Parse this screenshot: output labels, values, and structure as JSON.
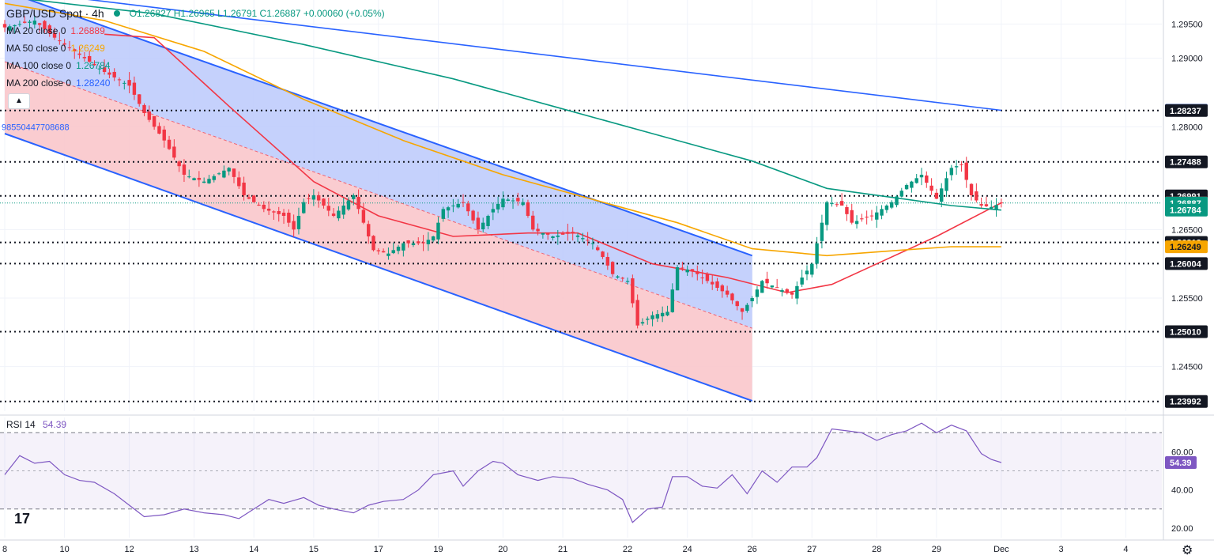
{
  "header": {
    "symbol": "GBP/USD Spot · 4h",
    "ohlc": "O1.26827 H1.26965 L1.26791 C1.26887 +0.00060 (+0.05%)"
  },
  "indicators": [
    {
      "label": "MA 20 close 0",
      "value": "1.26889",
      "color": "#f23645"
    },
    {
      "label": "MA 50 close 0",
      "value": "1.26249",
      "color": "#f7a600"
    },
    {
      "label": "MA 100 close 0",
      "value": "1.26784",
      "color": "#089981"
    },
    {
      "label": "MA 200 close 0",
      "value": "1.28240",
      "color": "#2962ff"
    }
  ],
  "rsi_panel": {
    "label": "RSI 14",
    "value": "54.39"
  },
  "trend_label": "98550447708688",
  "collapse_icon": "chevron-up-icon",
  "logo_text": "17",
  "settings_icon": "gear-icon",
  "colors": {
    "up": "#089981",
    "down": "#f23645",
    "channel_line": "#2962ff",
    "channel_upper_fill": "#bbc9fb",
    "channel_lower_fill": "#f9c6cb",
    "rsi": "#7e57c2",
    "level_line": "#131722"
  },
  "chart_data": [
    {
      "type": "candlestick",
      "title": "GBP/USD Spot · 4h",
      "ylim": [
        1.2385,
        1.2985
      ],
      "x_tick_labels": [
        "8",
        "10",
        "12",
        "13",
        "14",
        "15",
        "17",
        "19",
        "20",
        "21",
        "22",
        "24",
        "26",
        "27",
        "28",
        "29",
        "Dec",
        "3",
        "4"
      ],
      "x_tick_index": [
        0,
        12,
        25,
        38,
        50,
        62,
        75,
        87,
        100,
        112,
        125,
        137,
        150,
        162,
        175,
        187,
        200,
        212,
        225
      ],
      "y_ticks": [
        {
          "value": 1.295,
          "label": "1.29500"
        },
        {
          "value": 1.29,
          "label": "1.29000"
        },
        {
          "value": 1.28,
          "label": "1.28000"
        },
        {
          "value": 1.265,
          "label": "1.26500"
        },
        {
          "value": 1.255,
          "label": "1.25500"
        },
        {
          "value": 1.245,
          "label": "1.24500"
        }
      ],
      "price_labels": [
        {
          "value": 1.2824,
          "label": "1.28240",
          "bg": "#2962ff",
          "fg": "#ffffff"
        },
        {
          "value": 1.28237,
          "label": "1.28237",
          "bg": "#131722",
          "fg": "#ffffff"
        },
        {
          "value": 1.27488,
          "label": "1.27488",
          "bg": "#131722",
          "fg": "#ffffff"
        },
        {
          "value": 1.26991,
          "label": "1.26991",
          "bg": "#131722",
          "fg": "#ffffff"
        },
        {
          "value": 1.26889,
          "label": "1.26889",
          "bg": "#f23645",
          "fg": "#ffffff"
        },
        {
          "value": 1.26887,
          "label": "1.26887",
          "bg": "#089981",
          "fg": "#ffffff"
        },
        {
          "value": 1.26784,
          "label": "1.26784",
          "bg": "#089981",
          "fg": "#ffffff"
        },
        {
          "value": 1.26312,
          "label": "1.26312",
          "bg": "#131722",
          "fg": "#ffffff"
        },
        {
          "value": 1.26249,
          "label": "1.26249",
          "bg": "#f7a600",
          "fg": "#131722"
        },
        {
          "value": 1.26004,
          "label": "1.26004",
          "bg": "#131722",
          "fg": "#ffffff"
        },
        {
          "value": 1.2501,
          "label": "1.25010",
          "bg": "#131722",
          "fg": "#ffffff"
        },
        {
          "value": 1.23992,
          "label": "1.23992",
          "bg": "#131722",
          "fg": "#ffffff"
        }
      ],
      "horizontal_levels": [
        1.28237,
        1.27488,
        1.26991,
        1.26312,
        1.26004,
        1.2501,
        1.23992
      ],
      "channel": {
        "upper": [
          [
            0,
            1.2998
          ],
          [
            150,
            1.2612
          ]
        ],
        "lower": [
          [
            0,
            1.279
          ],
          [
            150,
            1.24
          ]
        ],
        "mid": [
          [
            0,
            1.2895
          ],
          [
            150,
            1.2506
          ]
        ]
      },
      "trend_line": [
        [
          12,
          1.299
        ],
        [
          200,
          1.2824
        ]
      ],
      "candles_anchor": [
        [
          0,
          1.2945
        ],
        [
          6,
          1.2955
        ],
        [
          10,
          1.293
        ],
        [
          15,
          1.2905
        ],
        [
          20,
          1.288
        ],
        [
          25,
          1.286
        ],
        [
          28,
          1.282
        ],
        [
          32,
          1.278
        ],
        [
          36,
          1.273
        ],
        [
          40,
          1.272
        ],
        [
          45,
          1.274
        ],
        [
          48,
          1.27
        ],
        [
          52,
          1.268
        ],
        [
          56,
          1.267
        ],
        [
          58,
          1.265
        ],
        [
          60,
          1.269
        ],
        [
          62,
          1.27
        ],
        [
          66,
          1.267
        ],
        [
          70,
          1.27
        ],
        [
          72,
          1.266
        ],
        [
          74,
          1.262
        ],
        [
          77,
          1.2615
        ],
        [
          80,
          1.263
        ],
        [
          84,
          1.263
        ],
        [
          86,
          1.264
        ],
        [
          88,
          1.268
        ],
        [
          92,
          1.269
        ],
        [
          95,
          1.265
        ],
        [
          98,
          1.268
        ],
        [
          100,
          1.2695
        ],
        [
          104,
          1.269
        ],
        [
          106,
          1.265
        ],
        [
          110,
          1.264
        ],
        [
          114,
          1.2645
        ],
        [
          118,
          1.263
        ],
        [
          120,
          1.261
        ],
        [
          122,
          1.2585
        ],
        [
          125,
          1.2575
        ],
        [
          127,
          1.251
        ],
        [
          130,
          1.2525
        ],
        [
          133,
          1.253
        ],
        [
          135,
          1.2595
        ],
        [
          138,
          1.259
        ],
        [
          142,
          1.257
        ],
        [
          145,
          1.2555
        ],
        [
          148,
          1.253
        ],
        [
          150,
          1.255
        ],
        [
          152,
          1.2575
        ],
        [
          155,
          1.2565
        ],
        [
          158,
          1.2555
        ],
        [
          160,
          1.258
        ],
        [
          162,
          1.26
        ],
        [
          165,
          1.269
        ],
        [
          168,
          1.2685
        ],
        [
          170,
          1.266
        ],
        [
          174,
          1.267
        ],
        [
          178,
          1.269
        ],
        [
          181,
          1.2715
        ],
        [
          184,
          1.273
        ],
        [
          187,
          1.2695
        ],
        [
          190,
          1.274
        ],
        [
          192,
          1.2745
        ],
        [
          194,
          1.27
        ],
        [
          196,
          1.2685
        ],
        [
          198,
          1.2683
        ],
        [
          200,
          1.26887
        ]
      ],
      "ma_series": [
        {
          "name": "MA 20",
          "color": "#f23645",
          "points": [
            [
              20,
              1.2935
            ],
            [
              30,
              1.293
            ],
            [
              45,
              1.283
            ],
            [
              62,
              1.272
            ],
            [
              75,
              1.267
            ],
            [
              90,
              1.264
            ],
            [
              105,
              1.2645
            ],
            [
              115,
              1.2645
            ],
            [
              130,
              1.26
            ],
            [
              145,
              1.258
            ],
            [
              157,
              1.2558
            ],
            [
              166,
              1.257
            ],
            [
              175,
              1.26
            ],
            [
              187,
              1.264
            ],
            [
              200,
              1.26889
            ]
          ]
        },
        {
          "name": "MA 50",
          "color": "#f7a600",
          "points": [
            [
              0,
              1.298
            ],
            [
              20,
              1.2955
            ],
            [
              40,
              1.291
            ],
            [
              60,
              1.284
            ],
            [
              80,
              1.278
            ],
            [
              100,
              1.273
            ],
            [
              120,
              1.269
            ],
            [
              135,
              1.266
            ],
            [
              150,
              1.2622
            ],
            [
              165,
              1.2612
            ],
            [
              180,
              1.262
            ],
            [
              190,
              1.2625
            ],
            [
              200,
              1.26249
            ]
          ]
        },
        {
          "name": "MA 100",
          "color": "#089981",
          "points": [
            [
              0,
              1.299
            ],
            [
              30,
              1.2965
            ],
            [
              60,
              1.292
            ],
            [
              90,
              1.287
            ],
            [
              110,
              1.283
            ],
            [
              130,
              1.279
            ],
            [
              150,
              1.275
            ],
            [
              165,
              1.271
            ],
            [
              180,
              1.2695
            ],
            [
              190,
              1.2685
            ],
            [
              200,
              1.26784
            ]
          ]
        },
        {
          "name": "MA 200",
          "color": "#2962ff",
          "points": [
            [
              12,
              1.299
            ],
            [
              200,
              1.2824
            ]
          ]
        }
      ]
    },
    {
      "type": "line",
      "title": "RSI 14",
      "ylim": [
        15,
        78
      ],
      "y_ticks": [
        {
          "value": 60,
          "label": "60.00"
        },
        {
          "value": 40,
          "label": "40.00"
        },
        {
          "value": 20,
          "label": "20.00"
        }
      ],
      "bands": [
        70,
        30
      ],
      "midline": 50,
      "last_label": {
        "value": 54.39,
        "label": "54.39",
        "bg": "#7e57c2"
      },
      "series": [
        {
          "name": "RSI 14",
          "color": "#7e57c2",
          "points": [
            [
              0,
              48
            ],
            [
              3,
              58
            ],
            [
              6,
              54
            ],
            [
              9,
              55
            ],
            [
              12,
              48
            ],
            [
              15,
              45
            ],
            [
              18,
              44
            ],
            [
              22,
              38
            ],
            [
              25,
              32
            ],
            [
              28,
              26
            ],
            [
              32,
              27
            ],
            [
              36,
              30
            ],
            [
              40,
              28
            ],
            [
              44,
              27
            ],
            [
              47,
              25
            ],
            [
              50,
              30
            ],
            [
              53,
              35
            ],
            [
              56,
              33
            ],
            [
              60,
              36
            ],
            [
              63,
              32
            ],
            [
              66,
              30
            ],
            [
              70,
              28
            ],
            [
              73,
              32
            ],
            [
              76,
              34
            ],
            [
              80,
              35
            ],
            [
              83,
              40
            ],
            [
              86,
              48
            ],
            [
              90,
              50
            ],
            [
              92,
              42
            ],
            [
              95,
              50
            ],
            [
              98,
              55
            ],
            [
              100,
              54
            ],
            [
              103,
              48
            ],
            [
              107,
              45
            ],
            [
              110,
              47
            ],
            [
              114,
              46
            ],
            [
              117,
              43
            ],
            [
              121,
              40
            ],
            [
              124,
              35
            ],
            [
              126,
              23
            ],
            [
              129,
              30
            ],
            [
              132,
              31
            ],
            [
              134,
              47
            ],
            [
              137,
              47
            ],
            [
              140,
              42
            ],
            [
              143,
              41
            ],
            [
              146,
              48
            ],
            [
              149,
              38
            ],
            [
              152,
              50
            ],
            [
              155,
              44
            ],
            [
              158,
              52
            ],
            [
              161,
              52
            ],
            [
              163,
              57
            ],
            [
              166,
              72
            ],
            [
              169,
              71
            ],
            [
              172,
              70
            ],
            [
              175,
              66
            ],
            [
              178,
              69
            ],
            [
              181,
              71
            ],
            [
              184,
              75
            ],
            [
              187,
              70
            ],
            [
              190,
              74
            ],
            [
              193,
              71
            ],
            [
              196,
              59
            ],
            [
              198,
              56
            ],
            [
              200,
              54.39
            ]
          ]
        }
      ]
    }
  ]
}
